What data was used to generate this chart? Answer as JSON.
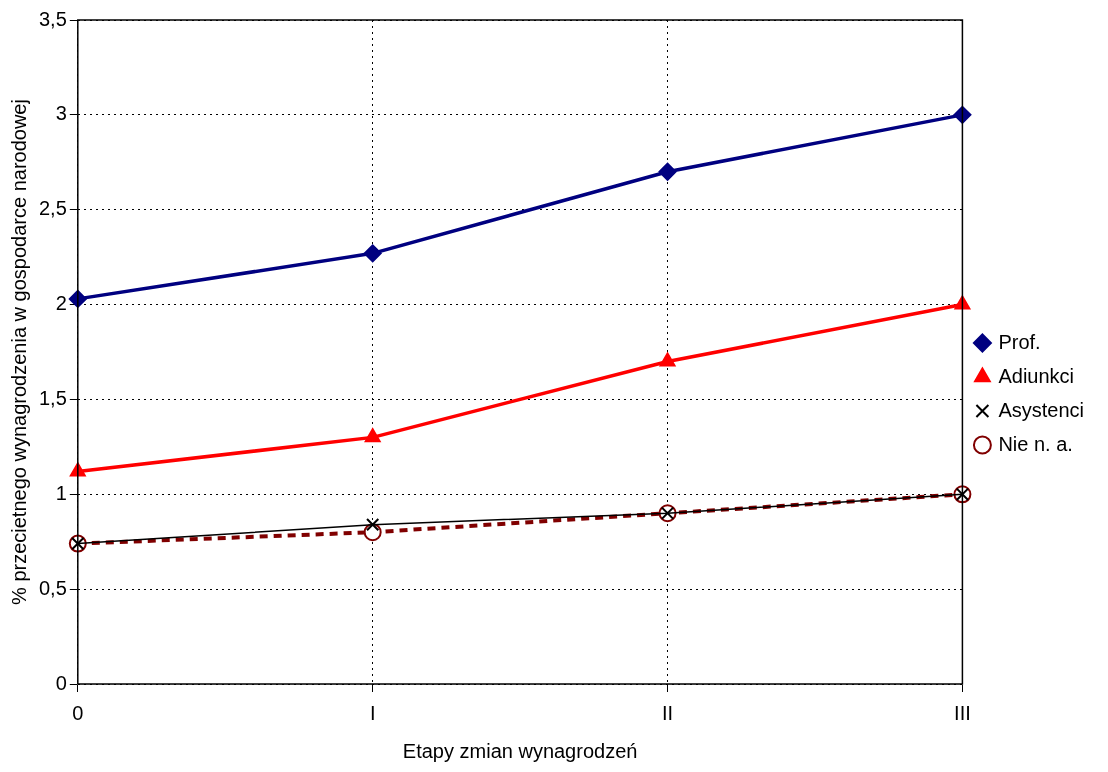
{
  "chart_data": {
    "type": "line",
    "xlabel": "Etapy zmian wynagrodzeń",
    "ylabel": "% przecietnego wynagrodzenia w gospodarce narodowej",
    "categories": [
      "0",
      "I",
      "II",
      "III"
    ],
    "series": [
      {
        "name": "Prof.",
        "color": "#000080",
        "marker": "diamond",
        "line_style": "solid",
        "values": [
          2.03,
          2.27,
          2.7,
          3.0
        ]
      },
      {
        "name": "Adiunkci",
        "color": "#ff0000",
        "marker": "triangle",
        "line_style": "solid",
        "values": [
          1.12,
          1.3,
          1.7,
          2.0
        ]
      },
      {
        "name": "Asystenci",
        "color": "#000000",
        "marker": "cross",
        "line_style": "solid",
        "values": [
          0.74,
          0.84,
          0.9,
          1.0
        ]
      },
      {
        "name": "Nie n. a.",
        "color": "#800000",
        "marker": "circle",
        "line_style": "dashed",
        "values": [
          0.74,
          0.8,
          0.9,
          1.0
        ]
      }
    ],
    "ylim": [
      0,
      3.5
    ],
    "yticks": [
      0,
      {
        "value": 0.5,
        "label": "0,5"
      },
      1,
      {
        "value": 1.5,
        "label": "1,5"
      },
      2,
      {
        "value": 2.5,
        "label": "2,5"
      },
      3,
      {
        "value": 3.5,
        "label": "3,5"
      }
    ],
    "grid": true,
    "legend": "right"
  }
}
